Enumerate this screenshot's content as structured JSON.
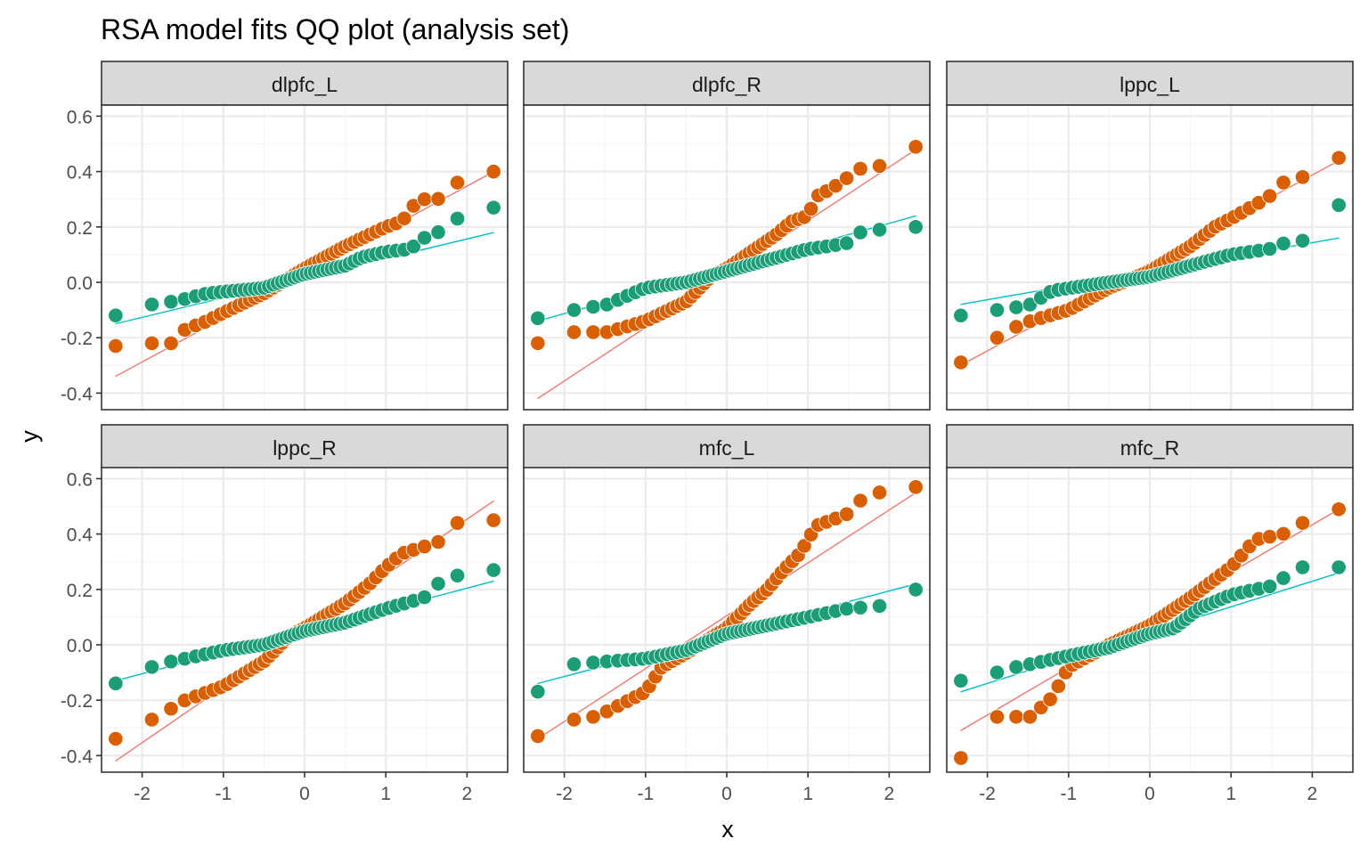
{
  "chart_data": {
    "type": "scatter",
    "title": "RSA model fits QQ plot (analysis set)",
    "xlabel": "x",
    "ylabel": "y",
    "xlim": [
      -2.5,
      2.5
    ],
    "ylim": [
      -0.46,
      0.64
    ],
    "x_ticks": [
      -2,
      -1,
      0,
      1,
      2
    ],
    "y_ticks": [
      -0.4,
      -0.2,
      0.0,
      0.2,
      0.4,
      0.6
    ],
    "x_tick_labels": [
      "-2",
      "-1",
      "0",
      "1",
      "2"
    ],
    "y_tick_labels": [
      "-0.4",
      "-0.2",
      "0.0",
      "0.2",
      "0.4",
      "0.6"
    ],
    "grid": true,
    "legend": "none",
    "colors": {
      "orange_points": "#d95f02",
      "teal_points": "#1b9e77",
      "orange_line": "#f8766d",
      "teal_line": "#00bfc4",
      "strip_fill": "#d9d9d9",
      "panel_border": "#333333",
      "grid_major": "#ebebeb",
      "grid_minor": "#f5f5f5"
    },
    "panels": [
      {
        "name": "dlpfc_L",
        "series": [
          {
            "color_key": "orange",
            "range": [
              -0.23,
              0.4
            ],
            "knots": [
              [
                -2.33,
                -0.23
              ],
              [
                -1.88,
                -0.22
              ],
              [
                -1.64,
                -0.22
              ],
              [
                -1.47,
                -0.17
              ],
              [
                -1.2,
                -0.14
              ],
              [
                -1.0,
                -0.11
              ],
              [
                -0.5,
                -0.04
              ],
              [
                0,
                0.05
              ],
              [
                0.5,
                0.13
              ],
              [
                1.0,
                0.2
              ],
              [
                1.2,
                0.22
              ],
              [
                1.4,
                0.3
              ],
              [
                1.64,
                0.3
              ],
              [
                1.88,
                0.36
              ],
              [
                2.33,
                0.4
              ]
            ],
            "qqline": [
              [
                -2.33,
                -0.34
              ],
              [
                2.33,
                0.4
              ]
            ]
          },
          {
            "color_key": "teal",
            "range": [
              -0.12,
              0.27
            ],
            "knots": [
              [
                -2.33,
                -0.12
              ],
              [
                -1.88,
                -0.08
              ],
              [
                -1.64,
                -0.07
              ],
              [
                -1.47,
                -0.06
              ],
              [
                -1.2,
                -0.04
              ],
              [
                -0.5,
                -0.02
              ],
              [
                0,
                0.03
              ],
              [
                0.5,
                0.06
              ],
              [
                0.7,
                0.09
              ],
              [
                1.0,
                0.11
              ],
              [
                1.3,
                0.12
              ],
              [
                1.47,
                0.16
              ],
              [
                1.64,
                0.18
              ],
              [
                1.88,
                0.23
              ],
              [
                2.33,
                0.27
              ]
            ],
            "qqline": [
              [
                -2.33,
                -0.15
              ],
              [
                2.33,
                0.18
              ]
            ]
          }
        ]
      },
      {
        "name": "dlpfc_R",
        "series": [
          {
            "color_key": "orange",
            "range": [
              -0.22,
              0.49
            ],
            "knots": [
              [
                -2.33,
                -0.22
              ],
              [
                -1.88,
                -0.18
              ],
              [
                -1.47,
                -0.18
              ],
              [
                -1.0,
                -0.14
              ],
              [
                -0.5,
                -0.07
              ],
              [
                -0.2,
                0.02
              ],
              [
                0,
                0.05
              ],
              [
                0.3,
                0.11
              ],
              [
                0.6,
                0.17
              ],
              [
                0.8,
                0.22
              ],
              [
                1.0,
                0.24
              ],
              [
                1.1,
                0.31
              ],
              [
                1.3,
                0.34
              ],
              [
                1.64,
                0.41
              ],
              [
                1.88,
                0.42
              ],
              [
                2.33,
                0.49
              ]
            ],
            "qqline": [
              [
                -2.33,
                -0.42
              ],
              [
                2.33,
                0.48
              ]
            ]
          },
          {
            "color_key": "teal",
            "range": [
              -0.13,
              0.2
            ],
            "knots": [
              [
                -2.33,
                -0.13
              ],
              [
                -1.88,
                -0.1
              ],
              [
                -1.47,
                -0.08
              ],
              [
                -1.0,
                -0.02
              ],
              [
                -0.5,
                0.0
              ],
              [
                0,
                0.04
              ],
              [
                0.5,
                0.08
              ],
              [
                1.0,
                0.12
              ],
              [
                1.47,
                0.14
              ],
              [
                1.64,
                0.18
              ],
              [
                1.88,
                0.19
              ],
              [
                2.33,
                0.2
              ]
            ],
            "qqline": [
              [
                -2.33,
                -0.14
              ],
              [
                2.33,
                0.24
              ]
            ]
          }
        ]
      },
      {
        "name": "lppc_L",
        "series": [
          {
            "color_key": "orange",
            "range": [
              -0.29,
              0.45
            ],
            "knots": [
              [
                -2.33,
                -0.29
              ],
              [
                -1.88,
                -0.2
              ],
              [
                -1.64,
                -0.16
              ],
              [
                -1.47,
                -0.14
              ],
              [
                -1.0,
                -0.1
              ],
              [
                -0.5,
                -0.02
              ],
              [
                0,
                0.04
              ],
              [
                0.5,
                0.13
              ],
              [
                0.8,
                0.2
              ],
              [
                1.0,
                0.23
              ],
              [
                1.3,
                0.28
              ],
              [
                1.47,
                0.31
              ],
              [
                1.64,
                0.36
              ],
              [
                1.88,
                0.38
              ],
              [
                2.33,
                0.45
              ]
            ],
            "qqline": [
              [
                -2.33,
                -0.3
              ],
              [
                2.33,
                0.44
              ]
            ]
          },
          {
            "color_key": "teal",
            "range": [
              -0.12,
              0.28
            ],
            "knots": [
              [
                -2.33,
                -0.12
              ],
              [
                -1.88,
                -0.1
              ],
              [
                -1.64,
                -0.09
              ],
              [
                -1.47,
                -0.08
              ],
              [
                -1.2,
                -0.03
              ],
              [
                -0.5,
                0.0
              ],
              [
                0,
                0.02
              ],
              [
                0.5,
                0.06
              ],
              [
                1.0,
                0.1
              ],
              [
                1.47,
                0.12
              ],
              [
                1.64,
                0.14
              ],
              [
                1.88,
                0.15
              ],
              [
                2.33,
                0.28
              ]
            ],
            "qqline": [
              [
                -2.33,
                -0.08
              ],
              [
                2.33,
                0.16
              ]
            ]
          }
        ]
      },
      {
        "name": "lppc_R",
        "series": [
          {
            "color_key": "orange",
            "range": [
              -0.34,
              0.45
            ],
            "knots": [
              [
                -2.33,
                -0.34
              ],
              [
                -1.88,
                -0.27
              ],
              [
                -1.64,
                -0.23
              ],
              [
                -1.47,
                -0.2
              ],
              [
                -1.0,
                -0.15
              ],
              [
                -0.5,
                -0.06
              ],
              [
                -0.2,
                0.03
              ],
              [
                0,
                0.06
              ],
              [
                0.5,
                0.15
              ],
              [
                0.8,
                0.22
              ],
              [
                1.0,
                0.28
              ],
              [
                1.2,
                0.33
              ],
              [
                1.64,
                0.37
              ],
              [
                1.88,
                0.44
              ],
              [
                2.33,
                0.45
              ]
            ],
            "qqline": [
              [
                -2.33,
                -0.42
              ],
              [
                2.33,
                0.52
              ]
            ]
          },
          {
            "color_key": "teal",
            "range": [
              -0.14,
              0.27
            ],
            "knots": [
              [
                -2.33,
                -0.14
              ],
              [
                -1.88,
                -0.08
              ],
              [
                -1.64,
                -0.06
              ],
              [
                -1.47,
                -0.05
              ],
              [
                -1.0,
                -0.02
              ],
              [
                -0.5,
                0.0
              ],
              [
                -0.2,
                0.03
              ],
              [
                0,
                0.05
              ],
              [
                0.5,
                0.08
              ],
              [
                1.0,
                0.13
              ],
              [
                1.47,
                0.17
              ],
              [
                1.64,
                0.22
              ],
              [
                1.88,
                0.25
              ],
              [
                2.33,
                0.27
              ]
            ],
            "qqline": [
              [
                -2.33,
                -0.13
              ],
              [
                2.33,
                0.23
              ]
            ]
          }
        ]
      },
      {
        "name": "mfc_L",
        "series": [
          {
            "color_key": "orange",
            "range": [
              -0.33,
              0.57
            ],
            "knots": [
              [
                -2.33,
                -0.33
              ],
              [
                -1.88,
                -0.27
              ],
              [
                -1.64,
                -0.26
              ],
              [
                -1.47,
                -0.24
              ],
              [
                -1.0,
                -0.17
              ],
              [
                -0.8,
                -0.08
              ],
              [
                -0.5,
                -0.03
              ],
              [
                0,
                0.06
              ],
              [
                0.3,
                0.15
              ],
              [
                0.5,
                0.2
              ],
              [
                0.7,
                0.27
              ],
              [
                0.9,
                0.33
              ],
              [
                1.1,
                0.43
              ],
              [
                1.47,
                0.47
              ],
              [
                1.64,
                0.52
              ],
              [
                1.88,
                0.55
              ],
              [
                2.33,
                0.57
              ]
            ],
            "qqline": [
              [
                -2.33,
                -0.34
              ],
              [
                2.33,
                0.55
              ]
            ]
          },
          {
            "color_key": "teal",
            "range": [
              -0.17,
              0.2
            ],
            "knots": [
              [
                -2.33,
                -0.17
              ],
              [
                -1.88,
                -0.07
              ],
              [
                -1.47,
                -0.06
              ],
              [
                -1.0,
                -0.05
              ],
              [
                -0.5,
                -0.02
              ],
              [
                0,
                0.04
              ],
              [
                0.5,
                0.07
              ],
              [
                1.0,
                0.1
              ],
              [
                1.47,
                0.13
              ],
              [
                1.88,
                0.14
              ],
              [
                2.33,
                0.2
              ]
            ],
            "qqline": [
              [
                -2.33,
                -0.14
              ],
              [
                2.33,
                0.22
              ]
            ]
          }
        ]
      },
      {
        "name": "mfc_R",
        "series": [
          {
            "color_key": "orange",
            "range": [
              -0.41,
              0.49
            ],
            "knots": [
              [
                -2.33,
                -0.41
              ],
              [
                -1.88,
                -0.26
              ],
              [
                -1.64,
                -0.26
              ],
              [
                -1.47,
                -0.26
              ],
              [
                -1.2,
                -0.19
              ],
              [
                -1.0,
                -0.08
              ],
              [
                -0.5,
                0.0
              ],
              [
                0,
                0.07
              ],
              [
                0.5,
                0.17
              ],
              [
                1.0,
                0.28
              ],
              [
                1.3,
                0.38
              ],
              [
                1.64,
                0.4
              ],
              [
                1.88,
                0.44
              ],
              [
                2.33,
                0.49
              ]
            ],
            "qqline": [
              [
                -2.33,
                -0.31
              ],
              [
                2.33,
                0.49
              ]
            ]
          },
          {
            "color_key": "teal",
            "range": [
              -0.13,
              0.28
            ],
            "knots": [
              [
                -2.33,
                -0.13
              ],
              [
                -1.88,
                -0.1
              ],
              [
                -1.64,
                -0.08
              ],
              [
                -1.47,
                -0.07
              ],
              [
                -1.0,
                -0.04
              ],
              [
                -0.5,
                -0.01
              ],
              [
                0,
                0.04
              ],
              [
                0.3,
                0.06
              ],
              [
                0.6,
                0.13
              ],
              [
                1.0,
                0.18
              ],
              [
                1.3,
                0.2
              ],
              [
                1.47,
                0.21
              ],
              [
                1.64,
                0.24
              ],
              [
                1.88,
                0.28
              ],
              [
                2.33,
                0.28
              ]
            ],
            "qqline": [
              [
                -2.33,
                -0.17
              ],
              [
                2.33,
                0.26
              ]
            ]
          }
        ]
      }
    ]
  }
}
